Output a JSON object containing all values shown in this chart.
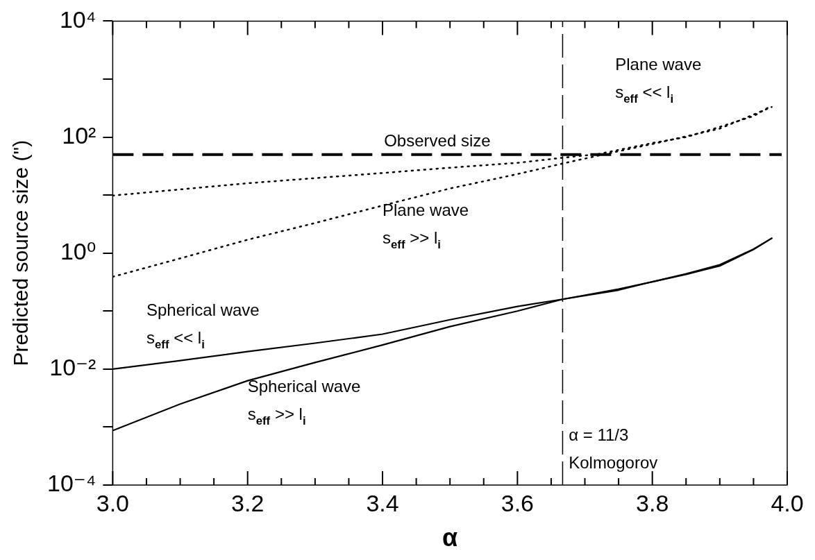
{
  "chart_data": {
    "type": "line",
    "xlabel": "α",
    "ylabel": "Predicted source size (\")",
    "log": "y",
    "grid": false,
    "legend": false,
    "xlim": [
      3.0,
      4.0
    ],
    "xticks": [
      {
        "value": 3.0,
        "label": "3.0"
      },
      {
        "value": 3.05,
        "label": null
      },
      {
        "value": 3.1,
        "label": null
      },
      {
        "value": 3.15,
        "label": null
      },
      {
        "value": 3.2,
        "label": "3.2"
      },
      {
        "value": 3.25,
        "label": null
      },
      {
        "value": 3.3,
        "label": null
      },
      {
        "value": 3.35,
        "label": null
      },
      {
        "value": 3.4,
        "label": "3.4"
      },
      {
        "value": 3.45,
        "label": null
      },
      {
        "value": 3.5,
        "label": null
      },
      {
        "value": 3.55,
        "label": null
      },
      {
        "value": 3.6,
        "label": "3.6"
      },
      {
        "value": 3.65,
        "label": null
      },
      {
        "value": 3.7,
        "label": null
      },
      {
        "value": 3.75,
        "label": null
      },
      {
        "value": 3.8,
        "label": "3.8"
      },
      {
        "value": 3.85,
        "label": null
      },
      {
        "value": 3.9,
        "label": null
      },
      {
        "value": 3.95,
        "label": null
      },
      {
        "value": 4.0,
        "label": "4.0"
      }
    ],
    "ylim": [
      0.0001,
      10000
    ],
    "yticks": [
      {
        "value": 0.0001,
        "label": "10⁻⁴"
      },
      {
        "value": 0.001,
        "label": null
      },
      {
        "value": 0.01,
        "label": "10⁻²"
      },
      {
        "value": 0.1,
        "label": null
      },
      {
        "value": 1,
        "label": "10⁰"
      },
      {
        "value": 10,
        "label": null
      },
      {
        "value": 100,
        "label": "10²"
      },
      {
        "value": 1000,
        "label": null
      },
      {
        "value": 10000,
        "label": "10⁴"
      }
    ],
    "series": [
      {
        "color": "#000000",
        "line_style": "dotted",
        "x": [
          3.0,
          3.2,
          3.4,
          3.489,
          3.6,
          3.667,
          3.72,
          3.8,
          3.85,
          3.9,
          3.95,
          3.977
        ],
        "values": [
          9.8,
          16,
          24,
          29,
          36,
          44,
          51,
          79,
          100,
          150,
          230,
          350
        ]
      },
      {
        "color": "#000000",
        "line_style": "dotted",
        "x": [
          3.0,
          3.1,
          3.2,
          3.3,
          3.4,
          3.5,
          3.6,
          3.667,
          3.72,
          3.8,
          3.9,
          3.977
        ],
        "values": [
          0.39,
          0.81,
          1.7,
          3.3,
          6.6,
          13,
          23,
          35,
          48,
          76,
          140,
          330
        ]
      },
      {
        "color": "#000000",
        "line_style": "solid",
        "x": [
          3.0,
          3.1,
          3.2,
          3.3,
          3.4,
          3.5,
          3.6,
          3.667,
          3.75,
          3.8,
          3.85,
          3.9,
          3.95,
          3.977
        ],
        "values": [
          0.01,
          0.014,
          0.02,
          0.028,
          0.04,
          0.071,
          0.12,
          0.16,
          0.24,
          0.32,
          0.44,
          0.63,
          1.17,
          1.8
        ]
      },
      {
        "color": "#000000",
        "line_style": "solid",
        "x": [
          3.0,
          3.1,
          3.2,
          3.3,
          3.4,
          3.5,
          3.6,
          3.667,
          3.75,
          3.8,
          3.85,
          3.9,
          3.95,
          3.977
        ],
        "values": [
          0.00087,
          0.0025,
          0.0063,
          0.013,
          0.026,
          0.054,
          0.1,
          0.16,
          0.23,
          0.32,
          0.43,
          0.6,
          1.15,
          1.8
        ]
      }
    ],
    "ref_lines": [
      {
        "axis": "y",
        "value": 50,
        "label": "Observed size",
        "line_style": "dashed",
        "color": "#000000"
      },
      {
        "axis": "x",
        "value": 3.667,
        "line_style": "dashed",
        "color": "#000000"
      }
    ],
    "annotations": [
      "Plane wave\ns$_{eff}$ << l$_{i}$",
      "Plane wave\ns$_{eff}$ >> l$_{i}$",
      "Spherical wave\ns$_{eff}$ << l$_{i}$",
      "Spherical wave\ns$_{eff}$ >> l$_{i}$",
      "α = 11/3\nKolmogorov"
    ]
  }
}
